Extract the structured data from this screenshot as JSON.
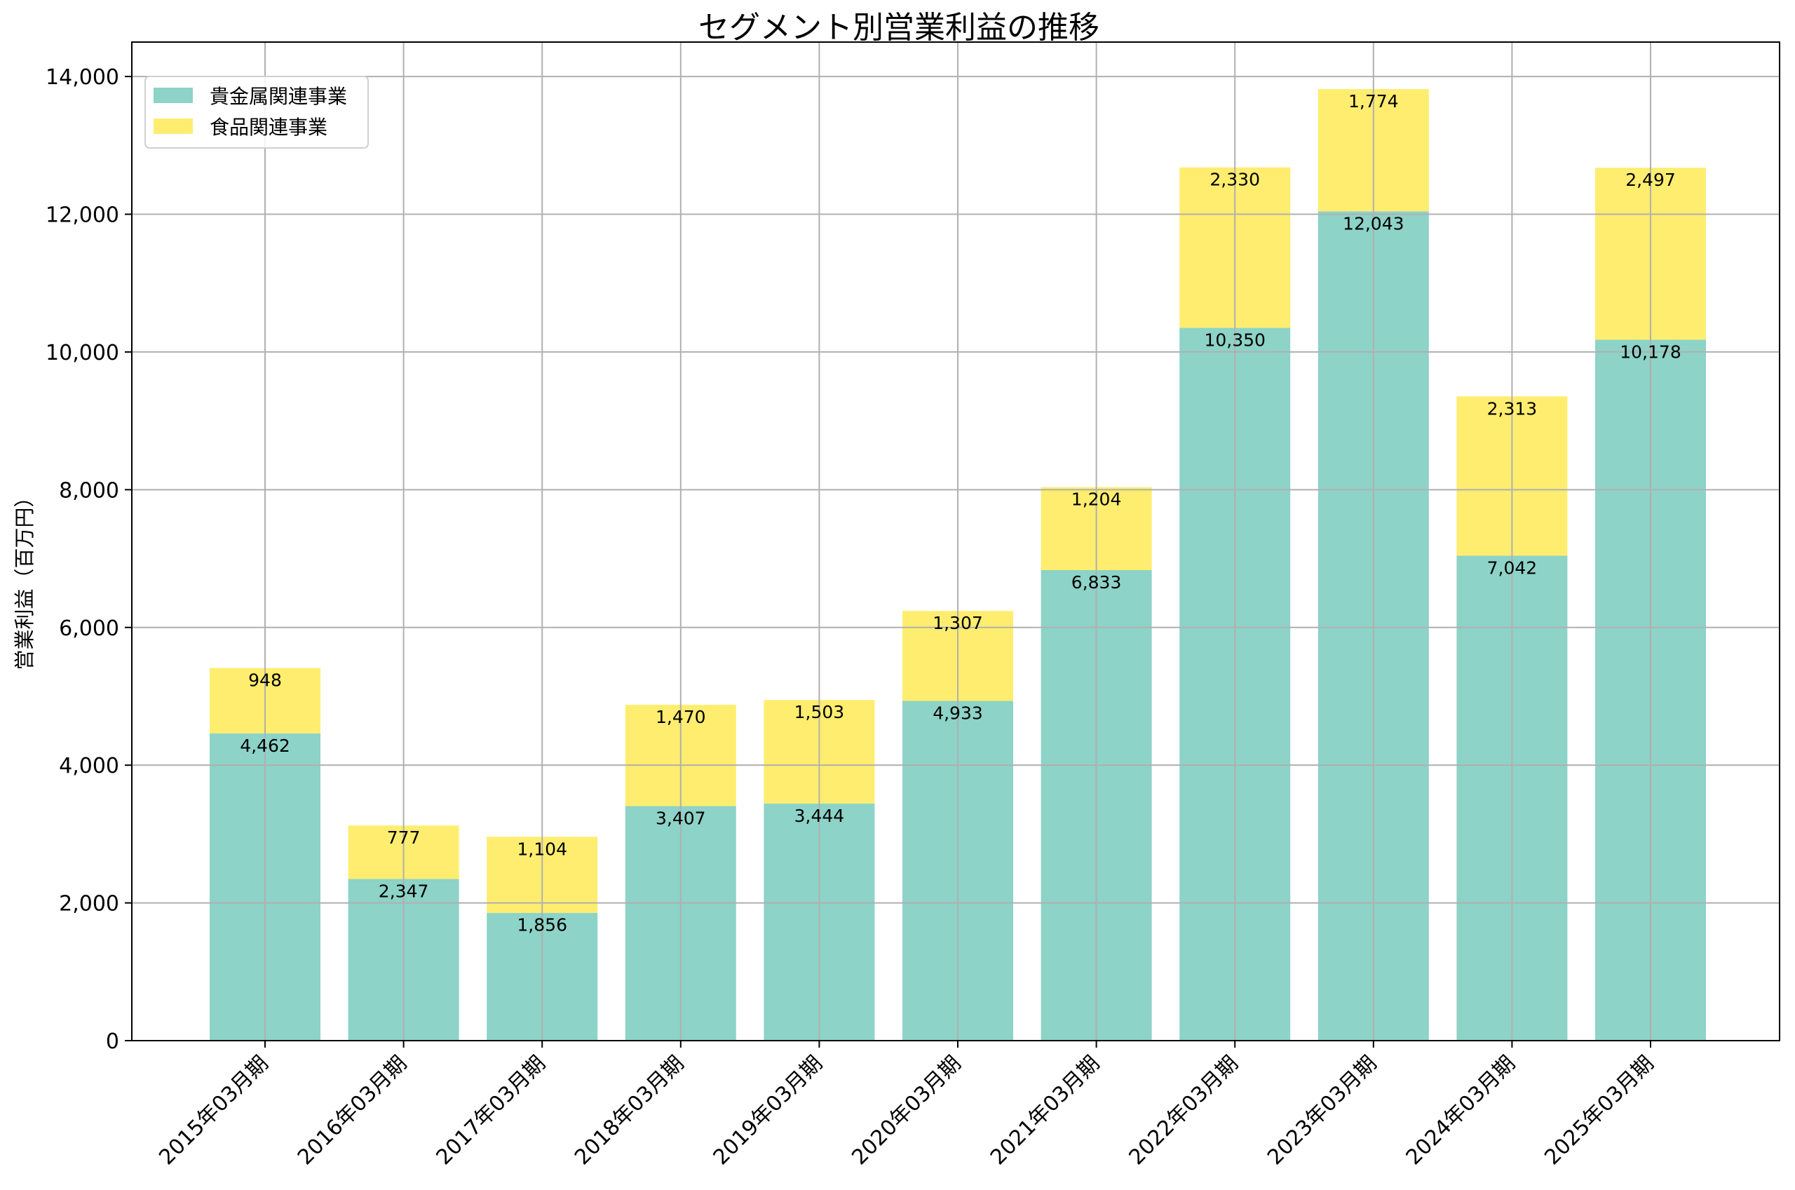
{
  "chart_data": {
    "type": "bar",
    "stacked": true,
    "title": "セグメント別営業利益の推移",
    "xlabel": "",
    "ylabel": "営業利益（百万円）",
    "ylim": [
      0,
      14500
    ],
    "yticks": [
      0,
      2000,
      4000,
      6000,
      8000,
      10000,
      12000,
      14000
    ],
    "ytick_labels": [
      "0",
      "2,000",
      "4,000",
      "6,000",
      "8,000",
      "10,000",
      "12,000",
      "14,000"
    ],
    "grid": true,
    "legend_position": "top-left",
    "categories": [
      "2015年03月期",
      "2016年03月期",
      "2017年03月期",
      "2018年03月期",
      "2019年03月期",
      "2020年03月期",
      "2021年03月期",
      "2022年03月期",
      "2023年03月期",
      "2024年03月期",
      "2025年03月期"
    ],
    "series": [
      {
        "name": "貴金属関連事業",
        "color": "#8dd3c7",
        "values": [
          4462,
          2347,
          1856,
          3407,
          3444,
          4933,
          6833,
          10350,
          12043,
          7042,
          10178
        ],
        "labels": [
          "4,462",
          "2,347",
          "1,856",
          "3,407",
          "3,444",
          "4,933",
          "6,833",
          "10,350",
          "12,043",
          "7,042",
          "10,178"
        ]
      },
      {
        "name": "食品関連事業",
        "color": "#ffed6f",
        "values": [
          948,
          777,
          1104,
          1470,
          1503,
          1307,
          1204,
          2330,
          1774,
          2313,
          2497
        ],
        "labels": [
          "948",
          "777",
          "1,104",
          "1,470",
          "1,503",
          "1,307",
          "1,204",
          "2,330",
          "1,774",
          "2,313",
          "2,497"
        ]
      }
    ]
  }
}
